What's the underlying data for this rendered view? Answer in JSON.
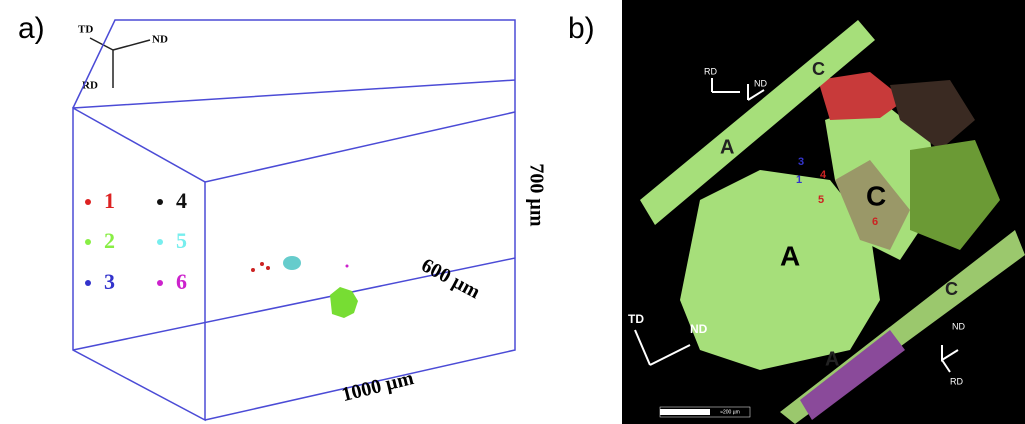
{
  "panel_a": {
    "label": "a)",
    "triad": {
      "td": "TD",
      "nd": "ND",
      "rd": "RD"
    },
    "dimensions": {
      "height": "700 µm",
      "depth": "600 µm",
      "width": "1000 µm"
    },
    "legend": [
      "1",
      "2",
      "3",
      "4",
      "5",
      "6"
    ]
  },
  "panel_b": {
    "label": "b)",
    "upper_strip": {
      "rd": "RD",
      "nd": "ND",
      "grain_a": "A",
      "grain_c": "C"
    },
    "center": {
      "grain_a": "A",
      "grain_c": "C",
      "points": [
        "3",
        "1",
        "4",
        "5",
        "6"
      ]
    },
    "lower_axes": {
      "td": "TD",
      "nd": "ND"
    },
    "lower_strip": {
      "nd": "ND",
      "rd": "RD",
      "grain_a": "A",
      "grain_c": "C"
    },
    "scale_bar": "≈200 µm"
  }
}
